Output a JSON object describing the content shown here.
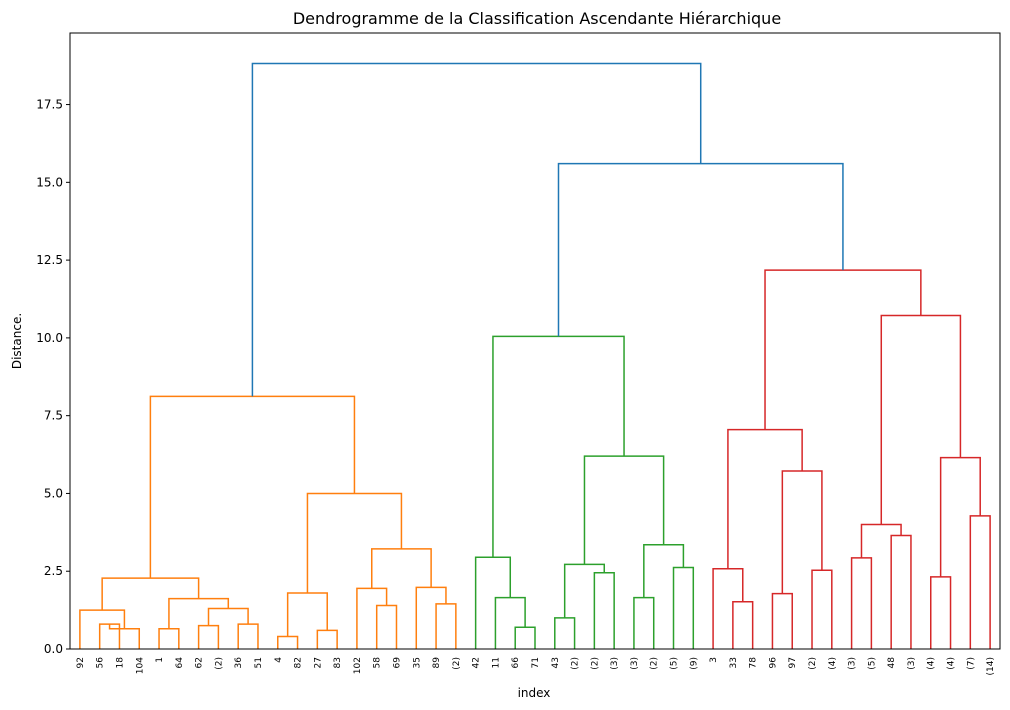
{
  "chart_data": {
    "type": "dendrogram",
    "title": "Dendrogramme de la Classification Ascendante Hiérarchique",
    "xlabel": "index",
    "ylabel": "Distance.",
    "ylim": [
      0,
      19.8
    ],
    "yticks": [
      0.0,
      2.5,
      5.0,
      7.5,
      10.0,
      12.5,
      15.0,
      17.5
    ],
    "ytick_labels": [
      "0.0",
      "2.5",
      "5.0",
      "7.5",
      "10.0",
      "12.5",
      "15.0",
      "17.5"
    ],
    "grid": false,
    "colors": {
      "root": "#1f77b4",
      "orange": "#ff7f0e",
      "green": "#2ca02c",
      "red": "#d62728"
    },
    "leaf_labels": [
      "92",
      "56",
      "18",
      "104",
      "1",
      "64",
      "62",
      "(2)",
      "36",
      "51",
      "4",
      "82",
      "27",
      "83",
      "102",
      "58",
      "69",
      "35",
      "89",
      "(2)",
      "42",
      "11",
      "66",
      "71",
      "43",
      "(2)",
      "(2)",
      "(3)",
      "(3)",
      "(2)",
      "(5)",
      "(9)",
      "3",
      "33",
      "78",
      "96",
      "97",
      "(2)",
      "(4)",
      "(3)",
      "(5)",
      "48",
      "(3)",
      "(4)",
      "(4)",
      "(7)",
      "(14)"
    ],
    "merges": [
      {
        "a": "L0",
        "b": "L1",
        "height": 1.25,
        "color": "orange"
      },
      {
        "a": "L1",
        "b": "L2",
        "height": 0.8,
        "color": "orange"
      },
      {
        "a": "L2",
        "b": "L3",
        "height": 0.65,
        "color": "orange"
      },
      {
        "a": "L4",
        "b": "L5",
        "height": 0.65,
        "color": "orange"
      },
      {
        "a": "L6",
        "b": "L7",
        "height": 0.75,
        "color": "orange"
      },
      {
        "a": "L8",
        "b": "L9",
        "height": 0.8,
        "color": "orange"
      },
      {
        "a": "L10",
        "b": "L11",
        "height": 0.4,
        "color": "orange"
      },
      {
        "a": "L12",
        "b": "L13",
        "height": 0.6,
        "color": "orange"
      },
      {
        "a": "L15",
        "b": "L16",
        "height": 1.4,
        "color": "orange"
      },
      {
        "a": "L18",
        "b": "L19",
        "height": 1.45,
        "color": "orange"
      }
    ]
  }
}
